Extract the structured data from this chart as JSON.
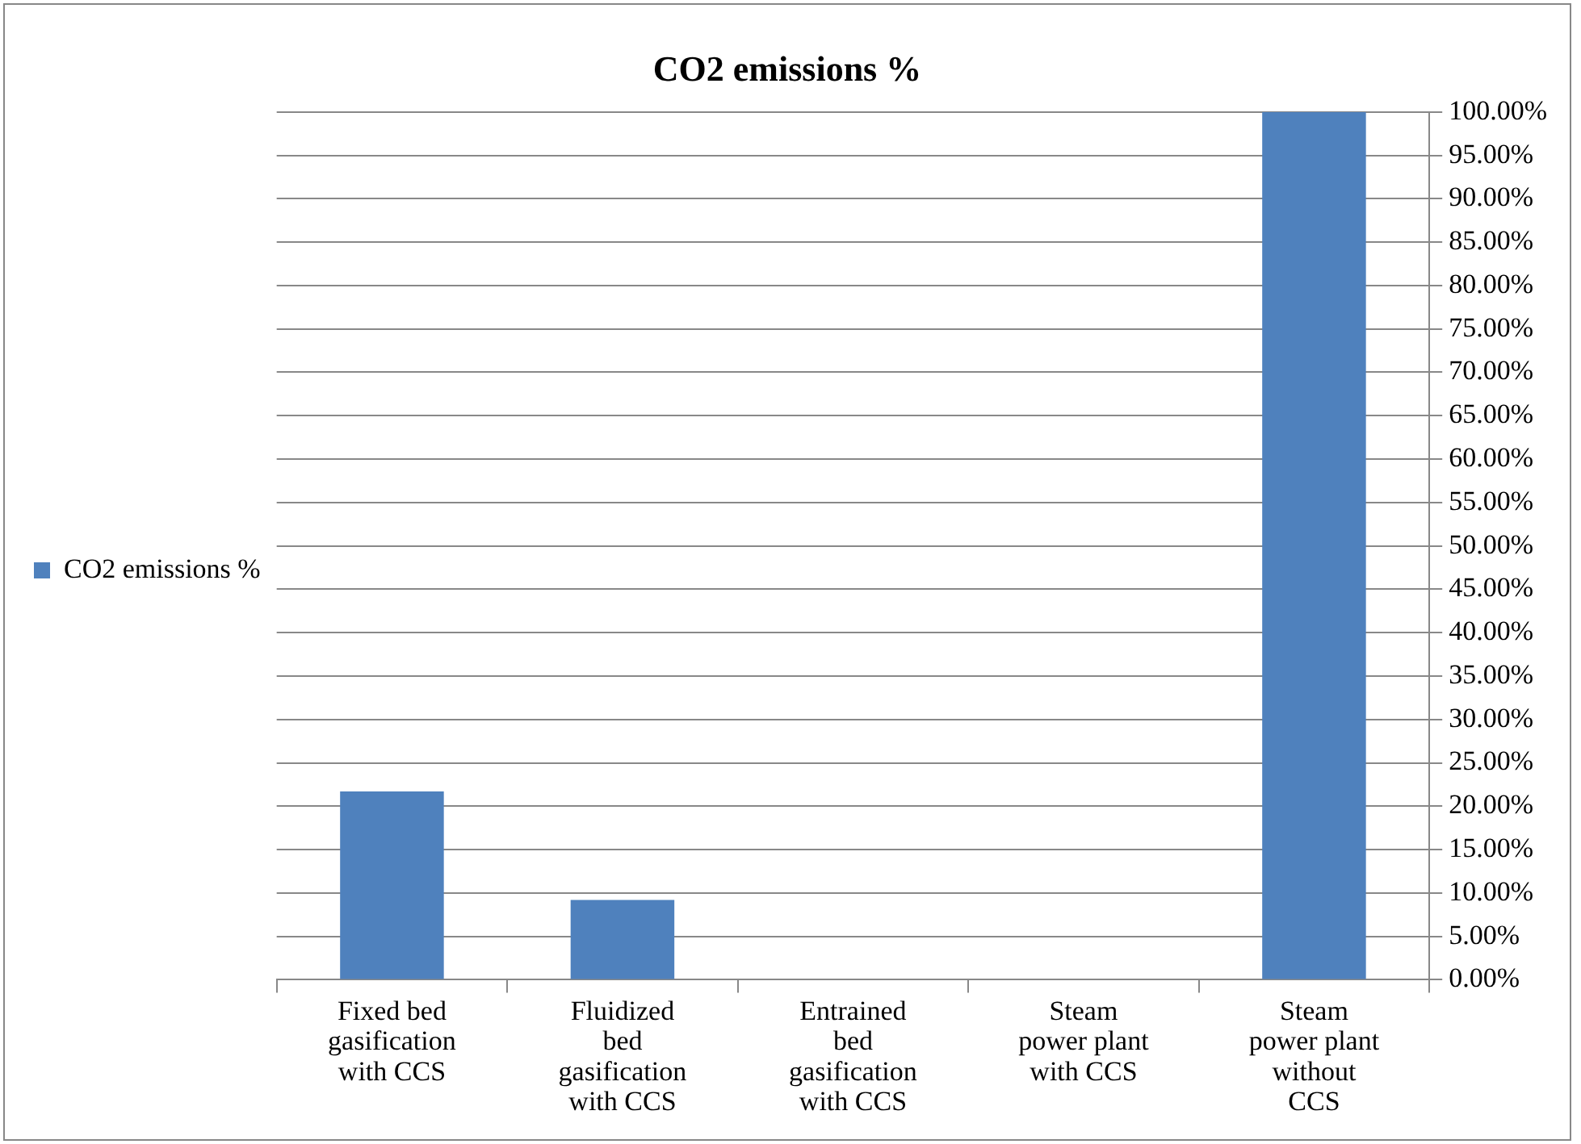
{
  "chart_data": {
    "type": "bar",
    "title": "CO2 emissions %",
    "categories": [
      "Fixed bed gasification with CCS",
      "Fluidized bed gasification with CCS",
      "Entrained bed gasification with CCS",
      "Steam power plant with CCS",
      "Steam power plant without CCS"
    ],
    "series": [
      {
        "name": "CO2 emissions %",
        "color": "#4f81bd",
        "values": [
          21.7,
          9.2,
          0,
          0,
          100
        ]
      }
    ],
    "ylim": [
      0,
      100
    ],
    "yticks": [
      {
        "value": 0,
        "label": "0.00%"
      },
      {
        "value": 5,
        "label": "5.00%"
      },
      {
        "value": 10,
        "label": "10.00%"
      },
      {
        "value": 15,
        "label": "15.00%"
      },
      {
        "value": 20,
        "label": "20.00%"
      },
      {
        "value": 25,
        "label": "25.00%"
      },
      {
        "value": 30,
        "label": "30.00%"
      },
      {
        "value": 35,
        "label": "35.00%"
      },
      {
        "value": 40,
        "label": "40.00%"
      },
      {
        "value": 45,
        "label": "45.00%"
      },
      {
        "value": 50,
        "label": "50.00%"
      },
      {
        "value": 55,
        "label": "55.00%"
      },
      {
        "value": 60,
        "label": "60.00%"
      },
      {
        "value": 65,
        "label": "65.00%"
      },
      {
        "value": 70,
        "label": "70.00%"
      },
      {
        "value": 75,
        "label": "75.00%"
      },
      {
        "value": 80,
        "label": "80.00%"
      },
      {
        "value": 85,
        "label": "85.00%"
      },
      {
        "value": 90,
        "label": "90.00%"
      },
      {
        "value": 95,
        "label": "95.00%"
      },
      {
        "value": 100,
        "label": "100.00%"
      }
    ],
    "grid": "y",
    "legend": "left"
  }
}
